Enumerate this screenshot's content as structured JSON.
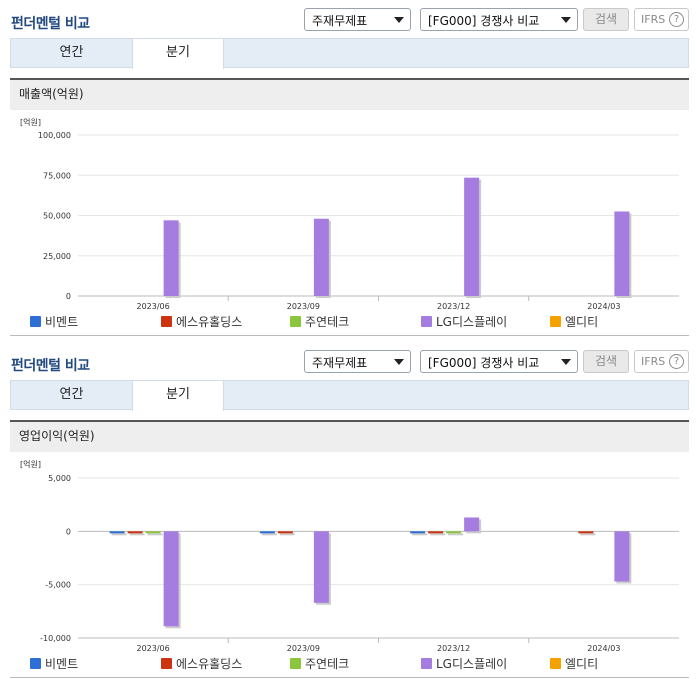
{
  "panels": [
    {
      "title": "펀더멘털 비교",
      "select_type": "주재무제표",
      "select_group": "[FG000] 경쟁사 비교",
      "search_label": "검색",
      "ifrs_label": "IFRS",
      "help_label": "?",
      "tabs": [
        {
          "label": "연간"
        },
        {
          "label": "분기"
        }
      ],
      "active_tab": "분기",
      "section_title": "매출액(억원)",
      "unit_label": "[억원]",
      "legend": [
        {
          "name": "비멘트",
          "color": "#2e6fd6"
        },
        {
          "name": "에스유홀딩스",
          "color": "#cc3311"
        },
        {
          "name": "주연테크",
          "color": "#8cc63f"
        },
        {
          "name": "LG디스플레이",
          "color": "#a57de0"
        },
        {
          "name": "엘디티",
          "color": "#f5a100"
        }
      ]
    },
    {
      "title": "펀더멘털 비교",
      "select_type": "주재무제표",
      "select_group": "[FG000] 경쟁사 비교",
      "search_label": "검색",
      "ifrs_label": "IFRS",
      "help_label": "?",
      "tabs": [
        {
          "label": "연간"
        },
        {
          "label": "분기"
        }
      ],
      "active_tab": "분기",
      "section_title": "영업이익(억원)",
      "unit_label": "[억원]",
      "legend": [
        {
          "name": "비멘트",
          "color": "#2e6fd6"
        },
        {
          "name": "에스유홀딩스",
          "color": "#cc3311"
        },
        {
          "name": "주연테크",
          "color": "#8cc63f"
        },
        {
          "name": "LG디스플레이",
          "color": "#a57de0"
        },
        {
          "name": "엘디티",
          "color": "#f5a100"
        }
      ]
    }
  ],
  "chart_data": [
    {
      "type": "bar",
      "ylabel": "[억원]",
      "ylim": [
        0,
        100000
      ],
      "yticks": [
        0,
        25000,
        50000,
        75000,
        100000
      ],
      "ytick_labels": [
        "0",
        "25,000",
        "50,000",
        "75,000",
        "100,000"
      ],
      "categories": [
        "2023/06",
        "2023/09",
        "2023/12",
        "2024/03"
      ],
      "grid": true,
      "legend_position": "bottom",
      "series": [
        {
          "name": "비멘트",
          "color": "#2e6fd6",
          "values": [
            null,
            null,
            null,
            null
          ]
        },
        {
          "name": "에스유홀딩스",
          "color": "#cc3311",
          "values": [
            null,
            null,
            null,
            null
          ]
        },
        {
          "name": "주연테크",
          "color": "#8cc63f",
          "values": [
            null,
            null,
            null,
            null
          ]
        },
        {
          "name": "LG디스플레이",
          "color": "#a57de0",
          "values": [
            47000,
            48000,
            73500,
            52500
          ]
        },
        {
          "name": "엘디티",
          "color": "#f5a100",
          "values": [
            null,
            null,
            null,
            null
          ]
        }
      ]
    },
    {
      "type": "bar",
      "ylabel": "[억원]",
      "ylim": [
        -10000,
        5000
      ],
      "yticks": [
        -10000,
        -5000,
        0,
        5000
      ],
      "ytick_labels": [
        "-10,000",
        "-5,000",
        "0",
        "5,000"
      ],
      "categories": [
        "2023/06",
        "2023/09",
        "2023/12",
        "2024/03"
      ],
      "grid": true,
      "legend_position": "bottom",
      "series": [
        {
          "name": "비멘트",
          "color": "#2e6fd6",
          "values": [
            -150,
            -150,
            -150,
            null
          ]
        },
        {
          "name": "에스유홀딩스",
          "color": "#cc3311",
          "values": [
            -150,
            -150,
            -150,
            -150
          ]
        },
        {
          "name": "주연테크",
          "color": "#8cc63f",
          "values": [
            -150,
            null,
            -150,
            null
          ]
        },
        {
          "name": "LG디스플레이",
          "color": "#a57de0",
          "values": [
            -8900,
            -6700,
            1300,
            -4700
          ]
        },
        {
          "name": "엘디티",
          "color": "#f5a100",
          "values": [
            null,
            null,
            null,
            null
          ]
        }
      ]
    }
  ]
}
